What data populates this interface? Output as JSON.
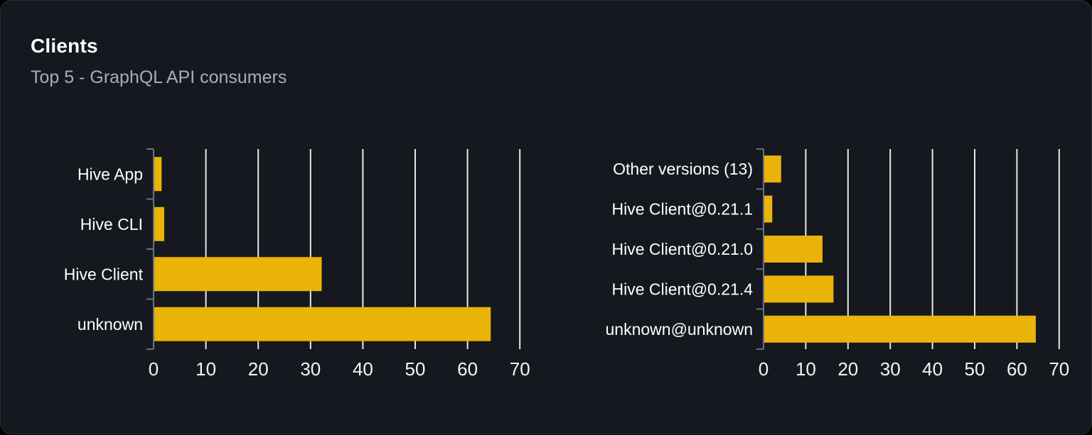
{
  "card": {
    "title": "Clients",
    "subtitle": "Top 5 - GraphQL API consumers"
  },
  "colors": {
    "page_bg": "#000000",
    "card_bg": "#15181e",
    "card_border": "#282d36",
    "bar": "#eab308",
    "gridline": "#e5e7eb",
    "axis": "#6b7280",
    "label_text": "#ffffff",
    "subtitle_text": "#a9aeb7"
  },
  "chart_data": [
    {
      "type": "bar",
      "orientation": "horizontal",
      "name": "top-clients",
      "categories": [
        "Hive App",
        "Hive CLI",
        "Hive Client",
        "unknown"
      ],
      "values": [
        1.4,
        1.9,
        32,
        64.3
      ],
      "xticks": [
        0,
        10,
        20,
        30,
        40,
        50,
        60,
        70
      ],
      "xlim": [
        0,
        75
      ],
      "grid": "vertical",
      "legend": "none",
      "title": "",
      "xlabel": "",
      "ylabel": ""
    },
    {
      "type": "bar",
      "orientation": "horizontal",
      "name": "top-client-versions",
      "categories": [
        "Other versions (13)",
        "Hive Client@0.21.1",
        "Hive Client@0.21.0",
        "Hive Client@0.21.4",
        "unknown@unknown"
      ],
      "values": [
        4,
        1.9,
        13.8,
        16.4,
        64.3
      ],
      "xticks": [
        0,
        10,
        20,
        30,
        40,
        50,
        60,
        70
      ],
      "xlim": [
        0,
        75
      ],
      "grid": "vertical",
      "legend": "none",
      "title": "",
      "xlabel": "",
      "ylabel": ""
    }
  ]
}
